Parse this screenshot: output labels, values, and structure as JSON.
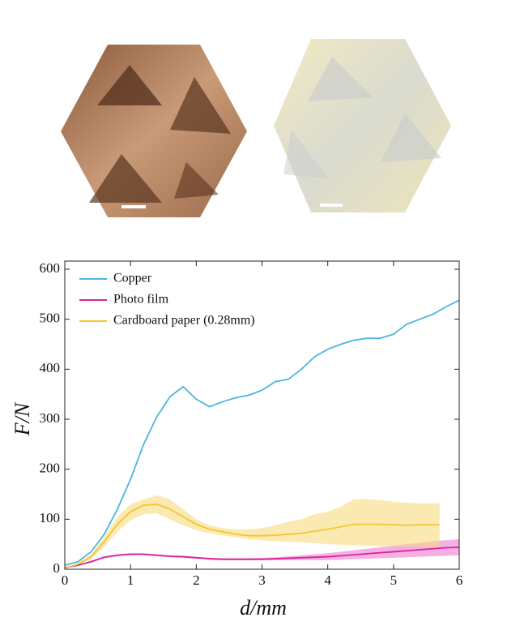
{
  "chart_data": {
    "type": "line",
    "xlabel": "d/mm",
    "ylabel": "F/N",
    "xlim": [
      0,
      6
    ],
    "xticks": [
      0,
      1,
      2,
      3,
      4,
      5,
      6
    ],
    "ylim": [
      0,
      600
    ],
    "yticks": [
      0,
      100,
      200,
      300,
      400,
      500,
      600
    ],
    "legend": "upper left",
    "series": [
      {
        "name": "Copper",
        "color": "#4ab6e0",
        "x": [
          0,
          0.2,
          0.4,
          0.6,
          0.8,
          1.0,
          1.2,
          1.4,
          1.6,
          1.8,
          2.0,
          2.2,
          2.4,
          2.6,
          2.8,
          3.0,
          3.2,
          3.4,
          3.6,
          3.8,
          4.0,
          4.2,
          4.4,
          4.6,
          4.8,
          5.0,
          5.2,
          5.4,
          5.6,
          5.8,
          6.0
        ],
        "values": [
          8,
          15,
          35,
          70,
          120,
          180,
          250,
          305,
          345,
          365,
          340,
          325,
          335,
          343,
          348,
          358,
          375,
          380,
          400,
          425,
          440,
          450,
          458,
          462,
          462,
          470,
          490,
          500,
          510,
          525,
          538
        ]
      },
      {
        "name": "Photo film",
        "color": "#d6269a",
        "band_color": "#f07ad0",
        "x": [
          0,
          0.2,
          0.4,
          0.6,
          0.8,
          1.0,
          1.2,
          1.4,
          1.6,
          1.8,
          2.0,
          2.2,
          2.4,
          2.6,
          2.8,
          3.0,
          3.2,
          3.4,
          3.6,
          3.8,
          4.0,
          4.2,
          4.4,
          4.6,
          4.8,
          5.0,
          5.2,
          5.4,
          5.6,
          5.8,
          6.0
        ],
        "values": [
          3,
          8,
          15,
          24,
          28,
          30,
          30,
          28,
          26,
          25,
          23,
          21,
          20,
          20,
          20,
          20,
          21,
          22,
          23,
          24,
          25,
          27,
          29,
          31,
          33,
          35,
          37,
          39,
          41,
          43,
          44
        ],
        "lower": [
          2,
          7,
          13,
          22,
          26,
          28,
          28,
          26,
          24,
          23,
          21,
          19,
          18,
          18,
          18,
          18,
          18,
          18,
          18,
          18,
          18,
          19,
          20,
          21,
          22,
          23,
          24,
          25,
          26,
          27,
          28
        ],
        "upper": [
          4,
          9,
          17,
          26,
          30,
          32,
          32,
          30,
          28,
          27,
          25,
          23,
          22,
          22,
          22,
          23,
          24,
          26,
          28,
          30,
          32,
          35,
          38,
          41,
          44,
          47,
          50,
          53,
          56,
          58,
          60
        ]
      },
      {
        "name": "Cardboard paper (0.28mm)",
        "color": "#f2c531",
        "band_color": "#f7dc7e",
        "x": [
          0,
          0.2,
          0.4,
          0.6,
          0.8,
          1.0,
          1.2,
          1.4,
          1.6,
          1.8,
          2.0,
          2.2,
          2.4,
          2.6,
          2.8,
          3.0,
          3.2,
          3.4,
          3.6,
          3.8,
          4.0,
          4.2,
          4.4,
          4.6,
          4.8,
          5.0,
          5.2,
          5.4,
          5.6,
          5.7
        ],
        "values": [
          2,
          10,
          25,
          55,
          90,
          115,
          128,
          130,
          120,
          105,
          90,
          80,
          75,
          70,
          67,
          67,
          68,
          70,
          72,
          76,
          80,
          85,
          90,
          90,
          90,
          89,
          88,
          89,
          89,
          89
        ],
        "lower": [
          2,
          8,
          20,
          45,
          75,
          98,
          110,
          112,
          100,
          88,
          78,
          72,
          68,
          64,
          60,
          58,
          56,
          55,
          54,
          52,
          50,
          49,
          48,
          47,
          46,
          46,
          46,
          46,
          45,
          45
        ],
        "upper": [
          2,
          12,
          30,
          65,
          105,
          130,
          140,
          148,
          140,
          120,
          100,
          88,
          82,
          80,
          80,
          82,
          88,
          95,
          100,
          110,
          115,
          125,
          140,
          140,
          138,
          135,
          133,
          132,
          132,
          132
        ]
      }
    ]
  }
}
